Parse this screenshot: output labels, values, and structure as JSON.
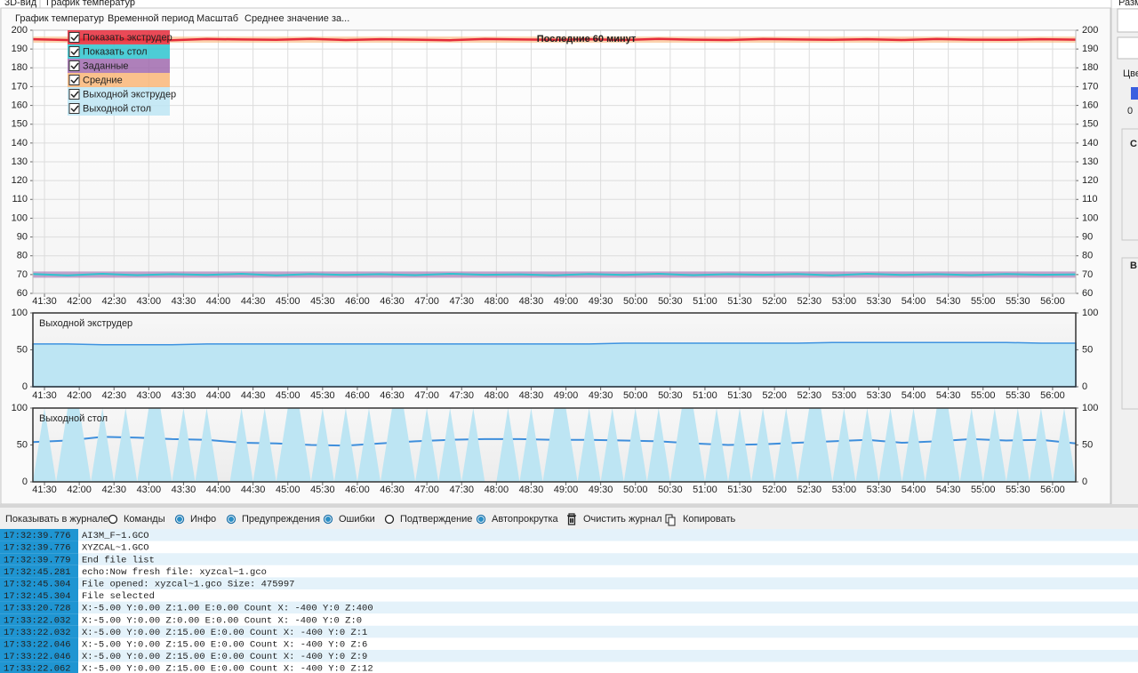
{
  "tabs": [
    "3D-вид",
    "График температур",
    "Разм"
  ],
  "menu": [
    "График температур",
    "Временной период",
    "Масштаб",
    "Среднее значение за..."
  ],
  "time_axis": {
    "xlim": [
      2480,
      3380
    ],
    "xticks": [
      {
        "value": 2490,
        "label": "41:30"
      },
      {
        "value": 2520,
        "label": "42:00"
      },
      {
        "value": 2550,
        "label": "42:30"
      },
      {
        "value": 2580,
        "label": "43:00"
      },
      {
        "value": 2610,
        "label": "43:30"
      },
      {
        "value": 2640,
        "label": "44:00"
      },
      {
        "value": 2670,
        "label": "44:30"
      },
      {
        "value": 2700,
        "label": "45:00"
      },
      {
        "value": 2730,
        "label": "45:30"
      },
      {
        "value": 2760,
        "label": "46:00"
      },
      {
        "value": 2790,
        "label": "46:30"
      },
      {
        "value": 2820,
        "label": "47:00"
      },
      {
        "value": 2850,
        "label": "47:30"
      },
      {
        "value": 2880,
        "label": "48:00"
      },
      {
        "value": 2910,
        "label": "48:30"
      },
      {
        "value": 2940,
        "label": "49:00"
      },
      {
        "value": 2970,
        "label": "49:30"
      },
      {
        "value": 3000,
        "label": "50:00"
      },
      {
        "value": 3030,
        "label": "50:30"
      },
      {
        "value": 3060,
        "label": "51:00"
      },
      {
        "value": 3090,
        "label": "51:30"
      },
      {
        "value": 3120,
        "label": "52:00"
      },
      {
        "value": 3150,
        "label": "52:30"
      },
      {
        "value": 3180,
        "label": "53:00"
      },
      {
        "value": 3210,
        "label": "53:30"
      },
      {
        "value": 3240,
        "label": "54:00"
      },
      {
        "value": 3270,
        "label": "54:30"
      },
      {
        "value": 3300,
        "label": "55:00"
      },
      {
        "value": 3330,
        "label": "55:30"
      },
      {
        "value": 3360,
        "label": "56:00"
      }
    ]
  },
  "charts": [
    {
      "type": "line",
      "title": "Последние 60 минут",
      "ylim": [
        60,
        200
      ],
      "yticks": [
        60,
        70,
        80,
        90,
        100,
        110,
        120,
        130,
        140,
        150,
        160,
        170,
        180,
        190,
        200
      ],
      "grid": true,
      "x": [
        2480,
        2510,
        2540,
        2570,
        2600,
        2630,
        2660,
        2690,
        2720,
        2750,
        2780,
        2810,
        2840,
        2870,
        2900,
        2930,
        2960,
        2990,
        3020,
        3050,
        3080,
        3110,
        3140,
        3170,
        3200,
        3230,
        3260,
        3290,
        3320,
        3350,
        3380
      ],
      "series": [
        {
          "name": "Показать экструдер",
          "type": "line",
          "color": "#e52a3a",
          "checked": true,
          "values": [
            195.2,
            194.8,
            195.4,
            195.0,
            194.7,
            195.3,
            195.1,
            194.9,
            195.4,
            194.8,
            195.2,
            195.0,
            194.7,
            195.3,
            195.1,
            194.9,
            195.2,
            194.8,
            195.4,
            195.0,
            194.8,
            195.3,
            195.1,
            194.9,
            195.2,
            194.8,
            195.3,
            195.0,
            194.9,
            195.2,
            195.0
          ]
        },
        {
          "name": "Показать стол",
          "type": "line",
          "color": "#2ec4cf",
          "checked": true,
          "values": [
            70.3,
            69.6,
            70.4,
            69.7,
            70.2,
            69.8,
            70.4,
            69.6,
            70.3,
            69.8,
            70.2,
            69.7,
            70.4,
            69.9,
            70.1,
            69.6,
            70.3,
            69.8,
            70.4,
            69.7,
            70.2,
            69.9,
            70.3,
            69.6,
            70.4,
            69.8,
            70.2,
            69.7,
            70.3,
            69.9,
            70.1
          ]
        },
        {
          "name": "Заданные",
          "type": "band",
          "color": "#a06aae",
          "checked": true,
          "values": [
            70,
            70,
            70,
            70,
            70,
            70,
            70,
            70,
            70,
            70,
            70,
            70,
            70,
            70,
            70,
            70,
            70,
            70,
            70,
            70,
            70,
            70,
            70,
            70,
            70,
            70,
            70,
            70,
            70,
            70,
            70
          ]
        },
        {
          "name": "Средние",
          "type": "band",
          "color": "#f9b678",
          "checked": true,
          "values": [
            195,
            195,
            195,
            195,
            195,
            195,
            195,
            195,
            195,
            195,
            195,
            195,
            195,
            195,
            195,
            195,
            195,
            195,
            195,
            195,
            195,
            195,
            195,
            195,
            195,
            195,
            195,
            195,
            195,
            195,
            195
          ]
        }
      ]
    },
    {
      "type": "area",
      "title": "Выходной экструдер",
      "ylim": [
        0,
        100
      ],
      "yticks": [
        0,
        50,
        100
      ],
      "grid": false,
      "x": [
        2480,
        2510,
        2540,
        2570,
        2600,
        2630,
        2660,
        2690,
        2720,
        2750,
        2780,
        2810,
        2840,
        2870,
        2900,
        2930,
        2960,
        2990,
        3020,
        3050,
        3080,
        3110,
        3140,
        3170,
        3200,
        3230,
        3260,
        3290,
        3320,
        3350,
        3380
      ],
      "series": [
        {
          "type": "area",
          "color": "#bde5f3",
          "stroke": "#3f93e0",
          "checked": true,
          "values": [
            58,
            58,
            57,
            57,
            57,
            58,
            58,
            58,
            58,
            58,
            58,
            58,
            58,
            58,
            58,
            58,
            58,
            59,
            59,
            59,
            59,
            59,
            59,
            60,
            60,
            60,
            60,
            60,
            60,
            59,
            59
          ]
        }
      ]
    },
    {
      "type": "area",
      "title": "Выходной стол",
      "ylim": [
        0,
        100
      ],
      "yticks": [
        0,
        50,
        100
      ],
      "grid": false,
      "x": [
        2480,
        2510,
        2540,
        2570,
        2600,
        2630,
        2660,
        2690,
        2720,
        2750,
        2780,
        2810,
        2840,
        2870,
        2900,
        2930,
        2960,
        2990,
        3020,
        3050,
        3080,
        3110,
        3140,
        3170,
        3200,
        3230,
        3260,
        3290,
        3320,
        3350,
        3380
      ],
      "series": [
        {
          "type": "area",
          "color": "#bde5f3",
          "checked": true,
          "x": [
            2480,
            2490,
            2500,
            2510,
            2520,
            2530,
            2540,
            2550,
            2560,
            2570,
            2580,
            2590,
            2600,
            2610,
            2620,
            2630,
            2640,
            2650,
            2660,
            2670,
            2680,
            2690,
            2700,
            2710,
            2720,
            2730,
            2740,
            2750,
            2760,
            2770,
            2780,
            2790,
            2800,
            2810,
            2820,
            2830,
            2840,
            2850,
            2860,
            2870,
            2880,
            2890,
            2900,
            2910,
            2920,
            2930,
            2940,
            2950,
            2960,
            2970,
            2980,
            2990,
            3000,
            3010,
            3020,
            3030,
            3040,
            3050,
            3060,
            3070,
            3080,
            3090,
            3100,
            3110,
            3120,
            3130,
            3140,
            3150,
            3160,
            3170,
            3180,
            3190,
            3200,
            3210,
            3220,
            3230,
            3240,
            3250,
            3260,
            3270,
            3280,
            3290,
            3300,
            3310,
            3320,
            3330,
            3340,
            3350,
            3360,
            3370,
            3380
          ],
          "values": [
            0,
            100,
            0,
            100,
            100,
            0,
            100,
            0,
            100,
            0,
            100,
            100,
            0,
            100,
            0,
            100,
            0,
            0,
            100,
            0,
            100,
            0,
            100,
            100,
            0,
            100,
            0,
            100,
            0,
            100,
            0,
            100,
            100,
            0,
            100,
            0,
            100,
            0,
            100,
            0,
            0,
            100,
            0,
            100,
            0,
            100,
            100,
            0,
            100,
            0,
            100,
            0,
            100,
            0,
            100,
            0,
            100,
            100,
            0,
            100,
            0,
            100,
            0,
            100,
            0,
            100,
            0,
            100,
            100,
            0,
            100,
            0,
            100,
            0,
            100,
            0,
            100,
            0,
            100,
            100,
            0,
            100,
            0,
            100,
            0,
            100,
            0,
            100,
            0,
            100,
            0
          ]
        },
        {
          "type": "line",
          "color": "#3f8fdc",
          "values": [
            54,
            56,
            61,
            60,
            58,
            57,
            53,
            52,
            50,
            49,
            52,
            55,
            57,
            58,
            58,
            57,
            57,
            56,
            55,
            52,
            50,
            51,
            53,
            55,
            57,
            53,
            55,
            58,
            56,
            57,
            52
          ]
        }
      ]
    }
  ],
  "log": {
    "label": "Показывать в журнале:",
    "options": [
      {
        "label": "Команды",
        "checked": false
      },
      {
        "label": "Инфо",
        "checked": true
      },
      {
        "label": "Предупреждения",
        "checked": true
      },
      {
        "label": "Ошибки",
        "checked": true
      },
      {
        "label": "Подтверждение",
        "checked": false
      },
      {
        "label": "Автопрокрутка",
        "checked": true
      }
    ],
    "buttons": [
      "Очистить журнал",
      "Копировать"
    ],
    "rows": [
      [
        "17:32:39.776",
        "AI3M_F~1.GCO"
      ],
      [
        "17:32:39.776",
        "XYZCAL~1.GCO"
      ],
      [
        "17:32:39.779",
        "End file list"
      ],
      [
        "17:32:45.281",
        "echo:Now fresh file: xyzcal~1.gco"
      ],
      [
        "17:32:45.304",
        "File opened: xyzcal~1.gco Size: 475997"
      ],
      [
        "17:32:45.304",
        "File selected"
      ],
      [
        "17:33:20.728",
        "X:-5.00 Y:0.00 Z:1.00 E:0.00 Count X: -400 Y:0 Z:400"
      ],
      [
        "17:33:22.032",
        "X:-5.00 Y:0.00 Z:0.00 E:0.00 Count X: -400 Y:0 Z:0"
      ],
      [
        "17:33:22.032",
        "X:-5.00 Y:0.00 Z:15.00 E:0.00 Count X: -400 Y:0 Z:1"
      ],
      [
        "17:33:22.046",
        "X:-5.00 Y:0.00 Z:15.00 E:0.00 Count X: -400 Y:0 Z:6"
      ],
      [
        "17:33:22.046",
        "X:-5.00 Y:0.00 Z:15.00 E:0.00 Count X: -400 Y:0 Z:9"
      ],
      [
        "17:33:22.062",
        "X:-5.00 Y:0.00 Z:15.00 E:0.00 Count X: -400 Y:0 Z:12"
      ]
    ]
  },
  "right_panel": {
    "color_label": "Цве",
    "value": "0",
    "sections": [
      "С",
      "В"
    ]
  }
}
